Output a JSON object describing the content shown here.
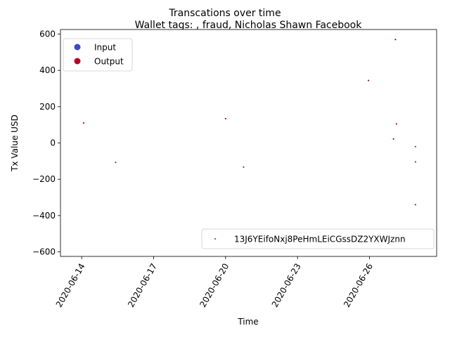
{
  "chart_data": {
    "type": "scatter",
    "suptitle": "Transcations over time",
    "title": "Wallet tags: , fraud, Nicholas Shawn Facebook",
    "xlabel": "Time",
    "ylabel": "Tx Value USD",
    "x_ticks": [
      "2020-06-14",
      "2020-06-17",
      "2020-06-20",
      "2020-06-23",
      "2020-06-26"
    ],
    "xlim": [
      "2020-06-13T02:48:00",
      "2020-06-28T19:12:00"
    ],
    "y_ticks": [
      -600,
      -400,
      -200,
      0,
      200,
      400,
      600
    ],
    "ylim": [
      -625,
      625
    ],
    "grid": false,
    "legend_top": {
      "placement": "upper left",
      "entries": [
        {
          "label": "Input",
          "color": "#3b4cc0"
        },
        {
          "label": "Output",
          "color": "#b40426"
        }
      ]
    },
    "legend_bottom": {
      "placement": "lower right",
      "entries": [
        {
          "label": "13J6YEifoNxj8PeHmLEiCGssDZ2YXWJznn",
          "color": "#1f77b4"
        }
      ]
    },
    "series": [
      {
        "name": "Input",
        "color": "#3b4cc0",
        "points": [
          {
            "x": "2020-06-15T10:00:00",
            "y": -107
          },
          {
            "x": "2020-06-20T18:00:00",
            "y": -133
          },
          {
            "x": "2020-06-27T22:00:00",
            "y": -20
          },
          {
            "x": "2020-06-27T22:00:00",
            "y": -104
          },
          {
            "x": "2020-06-27T22:00:00",
            "y": -340
          }
        ]
      },
      {
        "name": "Output",
        "color": "#b40426",
        "points": [
          {
            "x": "2020-06-14T02:00:00",
            "y": 110
          },
          {
            "x": "2020-06-20T00:00:00",
            "y": 134
          },
          {
            "x": "2020-06-25T23:00:00",
            "y": 344
          },
          {
            "x": "2020-06-27T00:00:00",
            "y": 22
          },
          {
            "x": "2020-06-27T02:00:00",
            "y": 570
          },
          {
            "x": "2020-06-27T03:00:00",
            "y": 105
          }
        ]
      }
    ]
  }
}
